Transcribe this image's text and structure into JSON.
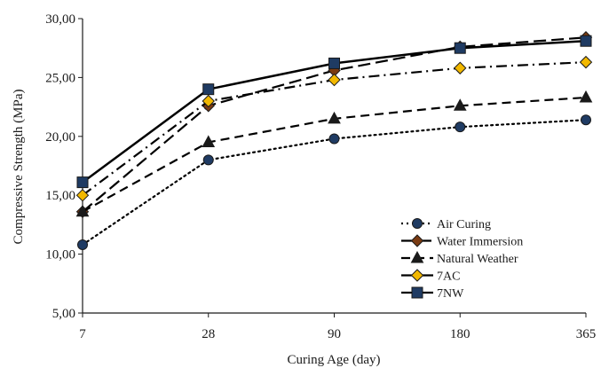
{
  "chart_data": {
    "type": "line",
    "title": "",
    "xlabel": "Curing Age (day)",
    "ylabel": "Compressive Strength (MPa)",
    "categories": [
      "7",
      "28",
      "90",
      "180",
      "365"
    ],
    "ylim": [
      5,
      30
    ],
    "yticks": [
      "5,00",
      "10,00",
      "15,00",
      "20,00",
      "25,00",
      "30,00"
    ],
    "grid": false,
    "legend_position": "bottom-right",
    "series": [
      {
        "name": "Air Curing",
        "values": [
          10.8,
          18.0,
          19.8,
          20.8,
          21.4
        ],
        "marker": "circle",
        "dash": "dotted",
        "marker_fill": "#1f3b63"
      },
      {
        "name": "Water Immersion",
        "values": [
          13.6,
          22.6,
          25.6,
          27.6,
          28.4
        ],
        "marker": "diamond",
        "dash": "long-dash",
        "marker_fill": "#7a3b12"
      },
      {
        "name": "Natural Weather",
        "values": [
          13.6,
          19.5,
          21.5,
          22.6,
          23.3
        ],
        "marker": "triangle",
        "dash": "dash",
        "marker_fill": "#1a1a1a"
      },
      {
        "name": "7AC",
        "values": [
          15.0,
          23.0,
          24.8,
          25.8,
          26.3
        ],
        "marker": "diamond",
        "dash": "dash-dot",
        "marker_fill": "#f2b800"
      },
      {
        "name": "7NW",
        "values": [
          16.1,
          24.0,
          26.2,
          27.5,
          28.1
        ],
        "marker": "square",
        "dash": "solid",
        "marker_fill": "#1f3b63"
      }
    ]
  }
}
